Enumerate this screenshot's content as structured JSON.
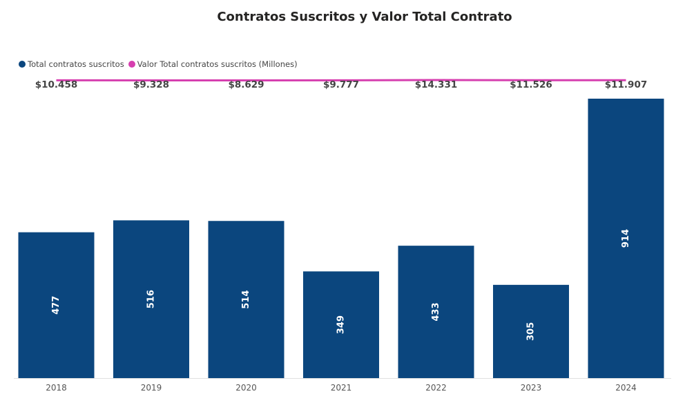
{
  "chart_data": {
    "type": "bar",
    "title": "Contratos Suscritos y Valor Total Contrato",
    "categories": [
      "2018",
      "2019",
      "2020",
      "2021",
      "2022",
      "2023",
      "2024"
    ],
    "series": [
      {
        "name": "Total contratos suscritos",
        "kind": "bar",
        "color": "#0b467e",
        "values": [
          477,
          516,
          514,
          349,
          433,
          305,
          914
        ],
        "labels": [
          "477",
          "516",
          "514",
          "349",
          "433",
          "305",
          "914"
        ]
      },
      {
        "name": "Valor Total contratos suscritos (Millones)",
        "kind": "line",
        "color": "#d63faf",
        "values": [
          10458,
          9328,
          8629,
          9777,
          14331,
          11526,
          11907
        ],
        "labels": [
          "$10.458",
          "$9.328",
          "$8.629",
          "$9.777",
          "$14.331",
          "$11.526",
          "$11.907"
        ]
      }
    ],
    "ylim": [
      0,
      914
    ],
    "legend": "top-left",
    "grid": false
  }
}
